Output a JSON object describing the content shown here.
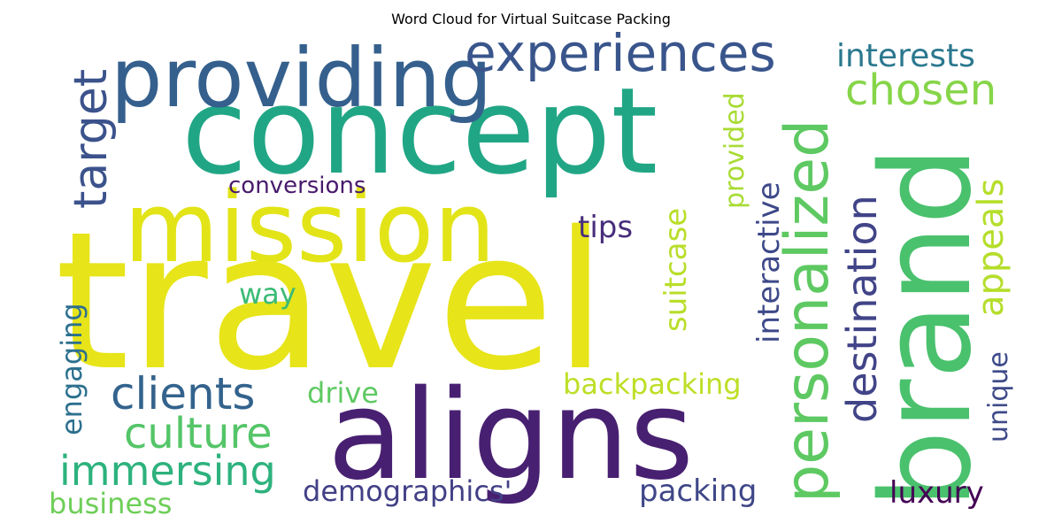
{
  "title": "Word Cloud for Virtual Suitcase Packing",
  "words": [
    {
      "text": "travel",
      "color": "#e7e419"
    },
    {
      "text": "concept",
      "color": "#21a685"
    },
    {
      "text": "aligns",
      "color": "#482071"
    },
    {
      "text": "brand",
      "color": "#4ac16d"
    },
    {
      "text": "mission",
      "color": "#e2e418"
    },
    {
      "text": "providing",
      "color": "#35608d"
    },
    {
      "text": "personalized",
      "color": "#5ec962"
    },
    {
      "text": "experiences",
      "color": "#39558c"
    },
    {
      "text": "destination",
      "color": "#414487"
    },
    {
      "text": "chosen",
      "color": "#86d549"
    },
    {
      "text": "target",
      "color": "#3b528b"
    },
    {
      "text": "interests",
      "color": "#2a788e"
    },
    {
      "text": "appeals",
      "color": "#b5de2b"
    },
    {
      "text": "provided",
      "color": "#a8db34"
    },
    {
      "text": "interactive",
      "color": "#3e4989"
    },
    {
      "text": "suitcase",
      "color": "#b8de29"
    },
    {
      "text": "conversions",
      "color": "#481a6c"
    },
    {
      "text": "tips",
      "color": "#472d7b"
    },
    {
      "text": "way",
      "color": "#3bbb75"
    },
    {
      "text": "clients",
      "color": "#33638d"
    },
    {
      "text": "drive",
      "color": "#5ec962"
    },
    {
      "text": "culture",
      "color": "#54c568"
    },
    {
      "text": "backpacking",
      "color": "#bddf26"
    },
    {
      "text": "immersing",
      "color": "#2db27d"
    },
    {
      "text": "engaging",
      "color": "#2d708e"
    },
    {
      "text": "unique",
      "color": "#3e4a89"
    },
    {
      "text": "demographics'",
      "color": "#424086"
    },
    {
      "text": "packing",
      "color": "#3f4788"
    },
    {
      "text": "luxury",
      "color": "#440154"
    },
    {
      "text": "business",
      "color": "#6ece58"
    }
  ]
}
